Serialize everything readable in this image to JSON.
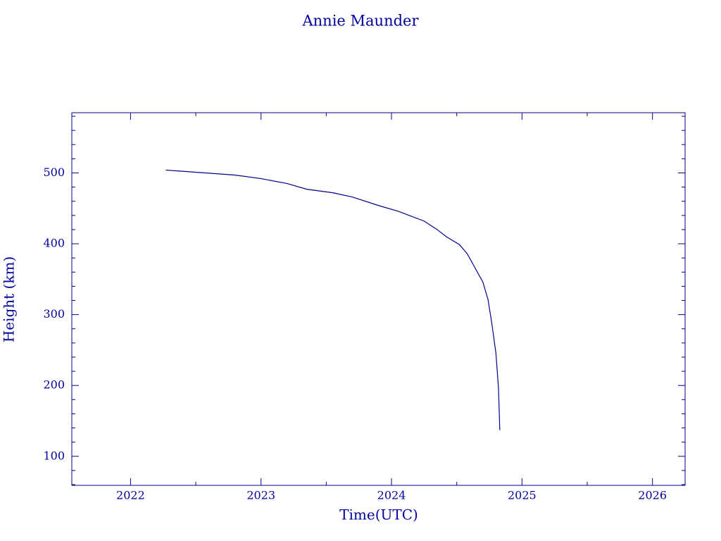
{
  "chart_data": {
    "type": "line",
    "title": "Annie Maunder",
    "x_label": "Time(UTC)",
    "y_label": "Height (km)",
    "series": [
      {
        "name": "Annie Maunder",
        "color": "#00008b",
        "x": [
          2022.27,
          2022.5,
          2022.8,
          2023.0,
          2023.2,
          2023.35,
          2023.55,
          2023.7,
          2023.9,
          2024.05,
          2024.25,
          2024.35,
          2024.42,
          2024.52,
          2024.58,
          2024.64,
          2024.7,
          2024.74,
          2024.77,
          2024.8,
          2024.82,
          2024.83
        ],
        "values": [
          504,
          501,
          497,
          492,
          485,
          477,
          472,
          466,
          454,
          446,
          432,
          420,
          410,
          399,
          386,
          366,
          346,
          321,
          286,
          246,
          196,
          137
        ]
      }
    ],
    "xlim": [
      2021.55,
      2026.25
    ],
    "xticks": [
      2022,
      2023,
      2024,
      2025,
      2026
    ],
    "minor_xticks": [
      2021.5,
      2022.5,
      2023.5,
      2024.5,
      2025.5
    ],
    "ylim": [
      59,
      585
    ],
    "yticks": [
      100,
      200,
      300,
      400,
      500
    ],
    "minor_yticks": [
      60,
      80,
      120,
      140,
      160,
      180,
      220,
      240,
      260,
      280,
      320,
      340,
      360,
      380,
      420,
      440,
      460,
      480,
      520,
      540,
      560,
      580
    ],
    "axis_color": "#00008b",
    "grid": false
  }
}
